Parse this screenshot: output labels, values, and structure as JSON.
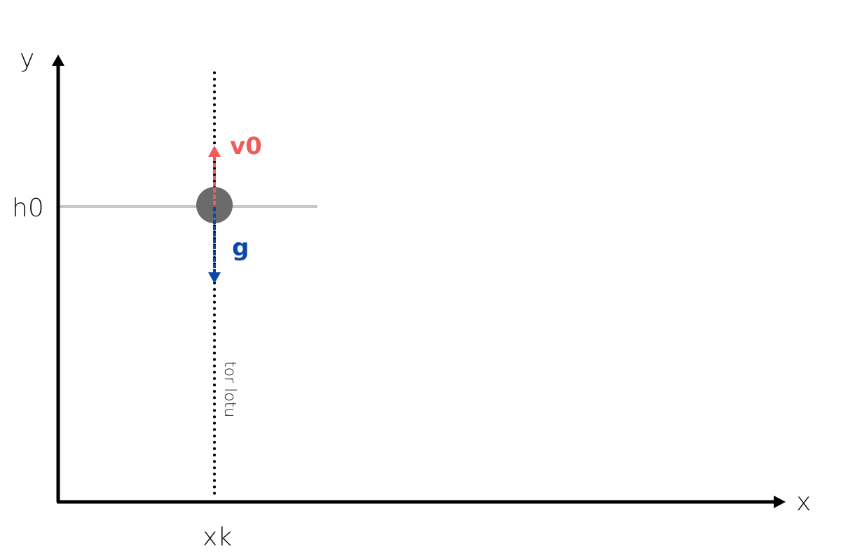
{
  "diagram": {
    "axes": {
      "y_label": "y",
      "x_label": "x"
    },
    "marks": {
      "height_label": "h0",
      "x_position_label": "xk"
    },
    "vectors": {
      "velocity": {
        "label": "v0",
        "color": "#f25a5a"
      },
      "gravity": {
        "label": "g",
        "color": "#0b47a8"
      }
    },
    "trajectory": {
      "label": "tor lotu"
    },
    "colors": {
      "axis": "#000000",
      "ball": "#6b6b6b",
      "height_line": "#c8c8c8",
      "trajectory": "#000000"
    }
  }
}
